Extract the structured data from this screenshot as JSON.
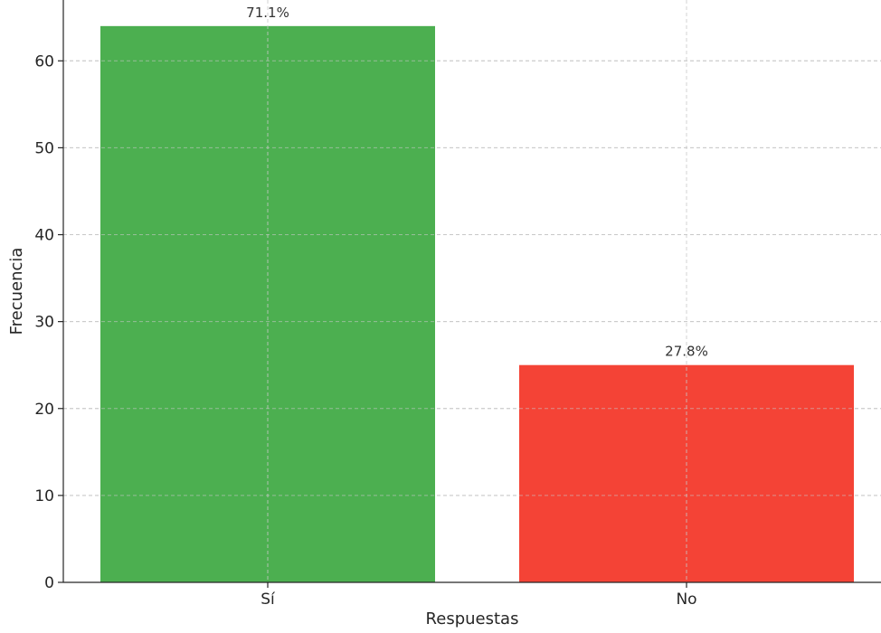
{
  "chart_data": {
    "type": "bar",
    "categories": [
      "Sí",
      "No"
    ],
    "values": [
      64,
      25
    ],
    "data_labels": [
      "71.1%",
      "27.8%"
    ],
    "bar_colors": [
      "#4caf50",
      "#f44336"
    ],
    "xlabel": "Respuestas",
    "ylabel": "Frecuencia",
    "ylim": [
      0,
      67
    ],
    "yticks": [
      0,
      10,
      20,
      30,
      40,
      50,
      60
    ],
    "grid": true
  }
}
